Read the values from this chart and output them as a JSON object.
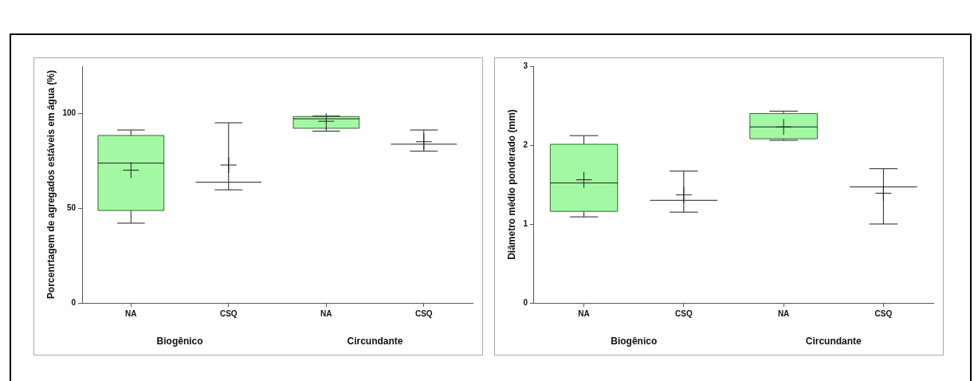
{
  "chart_data": [
    {
      "type": "box",
      "ylabel": "Porcenrtagem de agregados estáveis em água (%)",
      "categories": [
        "NA",
        "CSQ",
        "NA",
        "CSQ"
      ],
      "colors": [
        "#a3f9a3",
        "#222222",
        "#a3f9a3",
        "#222222"
      ],
      "ylim": [
        0,
        125
      ],
      "yticks": [
        0,
        50,
        100
      ],
      "grid": false,
      "annotations": [
        "Biogênico",
        "Circundante"
      ],
      "boxes": [
        {
          "low": 42.1,
          "q1": 48.8,
          "median": 73.8,
          "q3": 88.4,
          "high": 91.3,
          "mean": 70.1
        },
        {
          "low": 59.7,
          "q1": 63.7,
          "median": 63.7,
          "q3": 63.7,
          "high": 95.1,
          "mean": 72.8
        },
        {
          "low": 90.7,
          "q1": 92.2,
          "median": 97.2,
          "q3": 98.4,
          "high": 98.7,
          "mean": 95.9
        },
        {
          "low": 80.1,
          "q1": 83.8,
          "median": 83.8,
          "q3": 83.8,
          "high": 91.3,
          "mean": 85.1
        }
      ]
    },
    {
      "type": "box",
      "ylabel": "Diâmetro médio ponderado (mm)",
      "categories": [
        "NA",
        "CSQ",
        "NA",
        "CSQ"
      ],
      "colors": [
        "#a3f9a3",
        "#222222",
        "#a3f9a3",
        "#222222"
      ],
      "ylim": [
        0,
        3
      ],
      "yticks": [
        0,
        1,
        2,
        3
      ],
      "grid": false,
      "annotations": [
        "Biogênico",
        "Circundante"
      ],
      "boxes": [
        {
          "low": 1.09,
          "q1": 1.16,
          "median": 1.52,
          "q3": 2.01,
          "high": 2.12,
          "mean": 1.56
        },
        {
          "low": 1.15,
          "q1": 1.3,
          "median": 1.3,
          "q3": 1.3,
          "high": 1.67,
          "mean": 1.37
        },
        {
          "low": 2.06,
          "q1": 2.08,
          "median": 2.23,
          "q3": 2.4,
          "high": 2.43,
          "mean": 2.23
        },
        {
          "low": 1.0,
          "q1": 1.47,
          "median": 1.47,
          "q3": 1.47,
          "high": 1.7,
          "mean": 1.39
        }
      ]
    }
  ]
}
